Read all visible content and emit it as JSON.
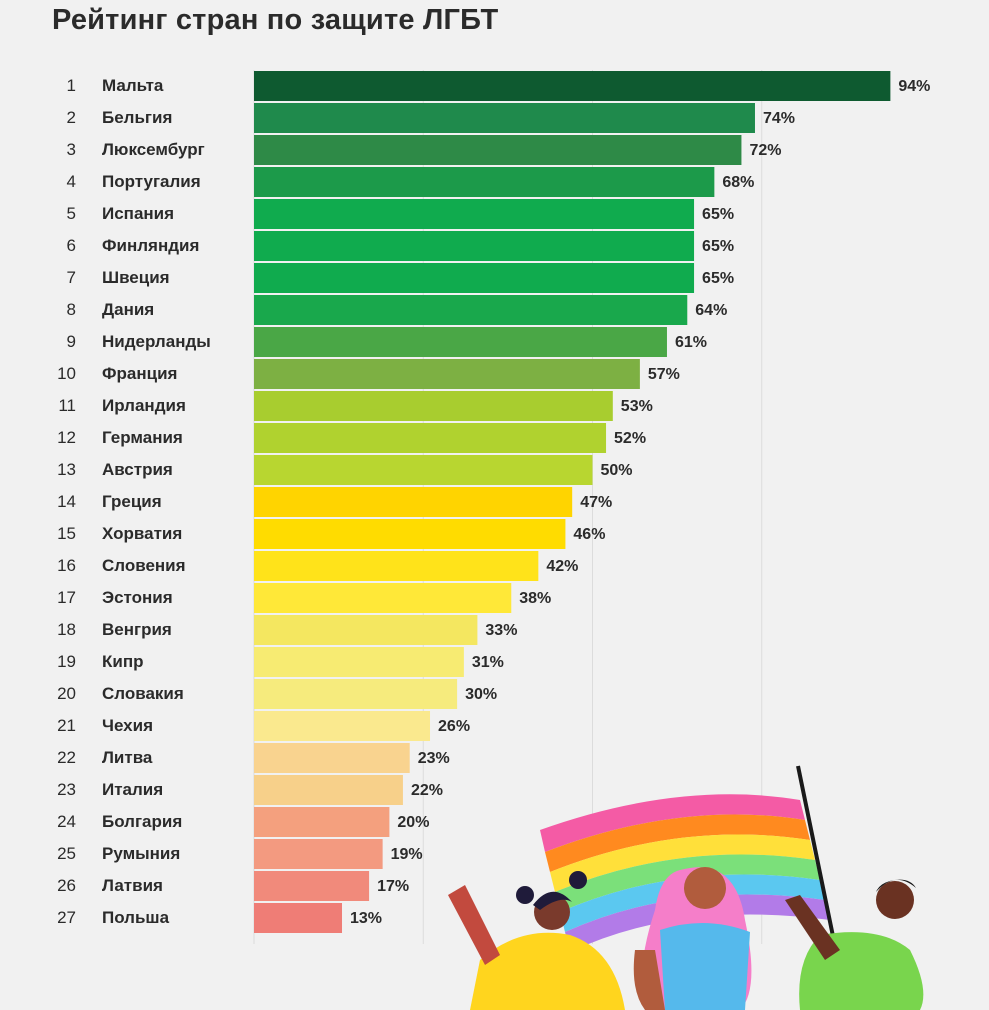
{
  "title": "Рейтинг стран по защите ЛГБТ",
  "chart_data": {
    "type": "bar",
    "orientation": "horizontal",
    "title": "Рейтинг стран по защите ЛГБТ",
    "value_suffix": "%",
    "xlim": [
      0,
      100
    ],
    "grid": true,
    "ranks": [
      "1",
      "2",
      "3",
      "4",
      "5",
      "6",
      "7",
      "8",
      "9",
      "10",
      "11",
      "12",
      "13",
      "14",
      "15",
      "16",
      "17",
      "18",
      "19",
      "20",
      "21",
      "22",
      "23",
      "24",
      "25",
      "26",
      "27"
    ],
    "categories": [
      "Мальта",
      "Бельгия",
      "Люксембург",
      "Португалия",
      "Испания",
      "Финляндия",
      "Швеция",
      "Дания",
      "Нидерланды",
      "Франция",
      "Ирландия",
      "Германия",
      "Австрия",
      "Греция",
      "Хорватия",
      "Словения",
      "Эстония",
      "Венгрия",
      "Кипр",
      "Словакия",
      "Чехия",
      "Литва",
      "Италия",
      "Болгария",
      "Румыния",
      "Латвия",
      "Польша"
    ],
    "values": [
      94,
      74,
      72,
      68,
      65,
      65,
      65,
      64,
      61,
      57,
      53,
      52,
      50,
      47,
      46,
      42,
      38,
      33,
      31,
      30,
      26,
      23,
      22,
      20,
      19,
      17,
      13
    ],
    "colors": [
      "#0e5a30",
      "#1f8a4c",
      "#2e8a47",
      "#1c9a4a",
      "#10ab4e",
      "#10ab4e",
      "#10ab4e",
      "#19a84c",
      "#4aa746",
      "#7db043",
      "#a8cd2f",
      "#b0d22f",
      "#b8d630",
      "#ffd400",
      "#ffdc00",
      "#ffe31a",
      "#ffe838",
      "#f4e760",
      "#f7eb72",
      "#f6eb7d",
      "#fae98e",
      "#f9d38f",
      "#f7d08a",
      "#f4a07e",
      "#f39a80",
      "#f18a7b",
      "#ef7d76"
    ]
  },
  "illustration": {
    "description_icon": "pride-flag-people-icon",
    "flag_colors": [
      "#f45ba5",
      "#ff8a1f",
      "#ffe03a",
      "#7be07a",
      "#5bc8f0",
      "#b27be8"
    ]
  }
}
